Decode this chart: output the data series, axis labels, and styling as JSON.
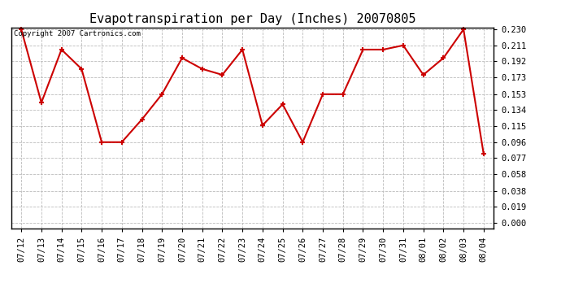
{
  "title": "Evapotranspiration per Day (Inches) 20070805",
  "copyright_text": "Copyright 2007 Cartronics.com",
  "dates": [
    "07/12",
    "07/13",
    "07/14",
    "07/15",
    "07/16",
    "07/17",
    "07/18",
    "07/19",
    "07/20",
    "07/21",
    "07/22",
    "07/23",
    "07/24",
    "07/25",
    "07/26",
    "07/27",
    "07/28",
    "07/29",
    "07/30",
    "07/31",
    "08/01",
    "08/02",
    "08/03",
    "08/04"
  ],
  "values": [
    0.23,
    0.143,
    0.206,
    0.183,
    0.096,
    0.096,
    0.123,
    0.153,
    0.196,
    0.183,
    0.176,
    0.206,
    0.116,
    0.141,
    0.096,
    0.153,
    0.153,
    0.206,
    0.206,
    0.211,
    0.176,
    0.196,
    0.23,
    0.082
  ],
  "line_color": "#cc0000",
  "marker": "+",
  "marker_size": 5,
  "marker_edge_width": 1.5,
  "line_width": 1.5,
  "ylim_min": 0.0,
  "ylim_max": 0.23,
  "yticks": [
    0.0,
    0.019,
    0.038,
    0.058,
    0.077,
    0.096,
    0.115,
    0.134,
    0.153,
    0.173,
    0.192,
    0.211,
    0.23
  ],
  "background_color": "#ffffff",
  "grid_color": "#bbbbbb",
  "grid_style": "--",
  "title_fontsize": 11,
  "tick_fontsize": 7.5,
  "copyright_fontsize": 6.5,
  "fig_width": 6.9,
  "fig_height": 3.75,
  "dpi": 100
}
